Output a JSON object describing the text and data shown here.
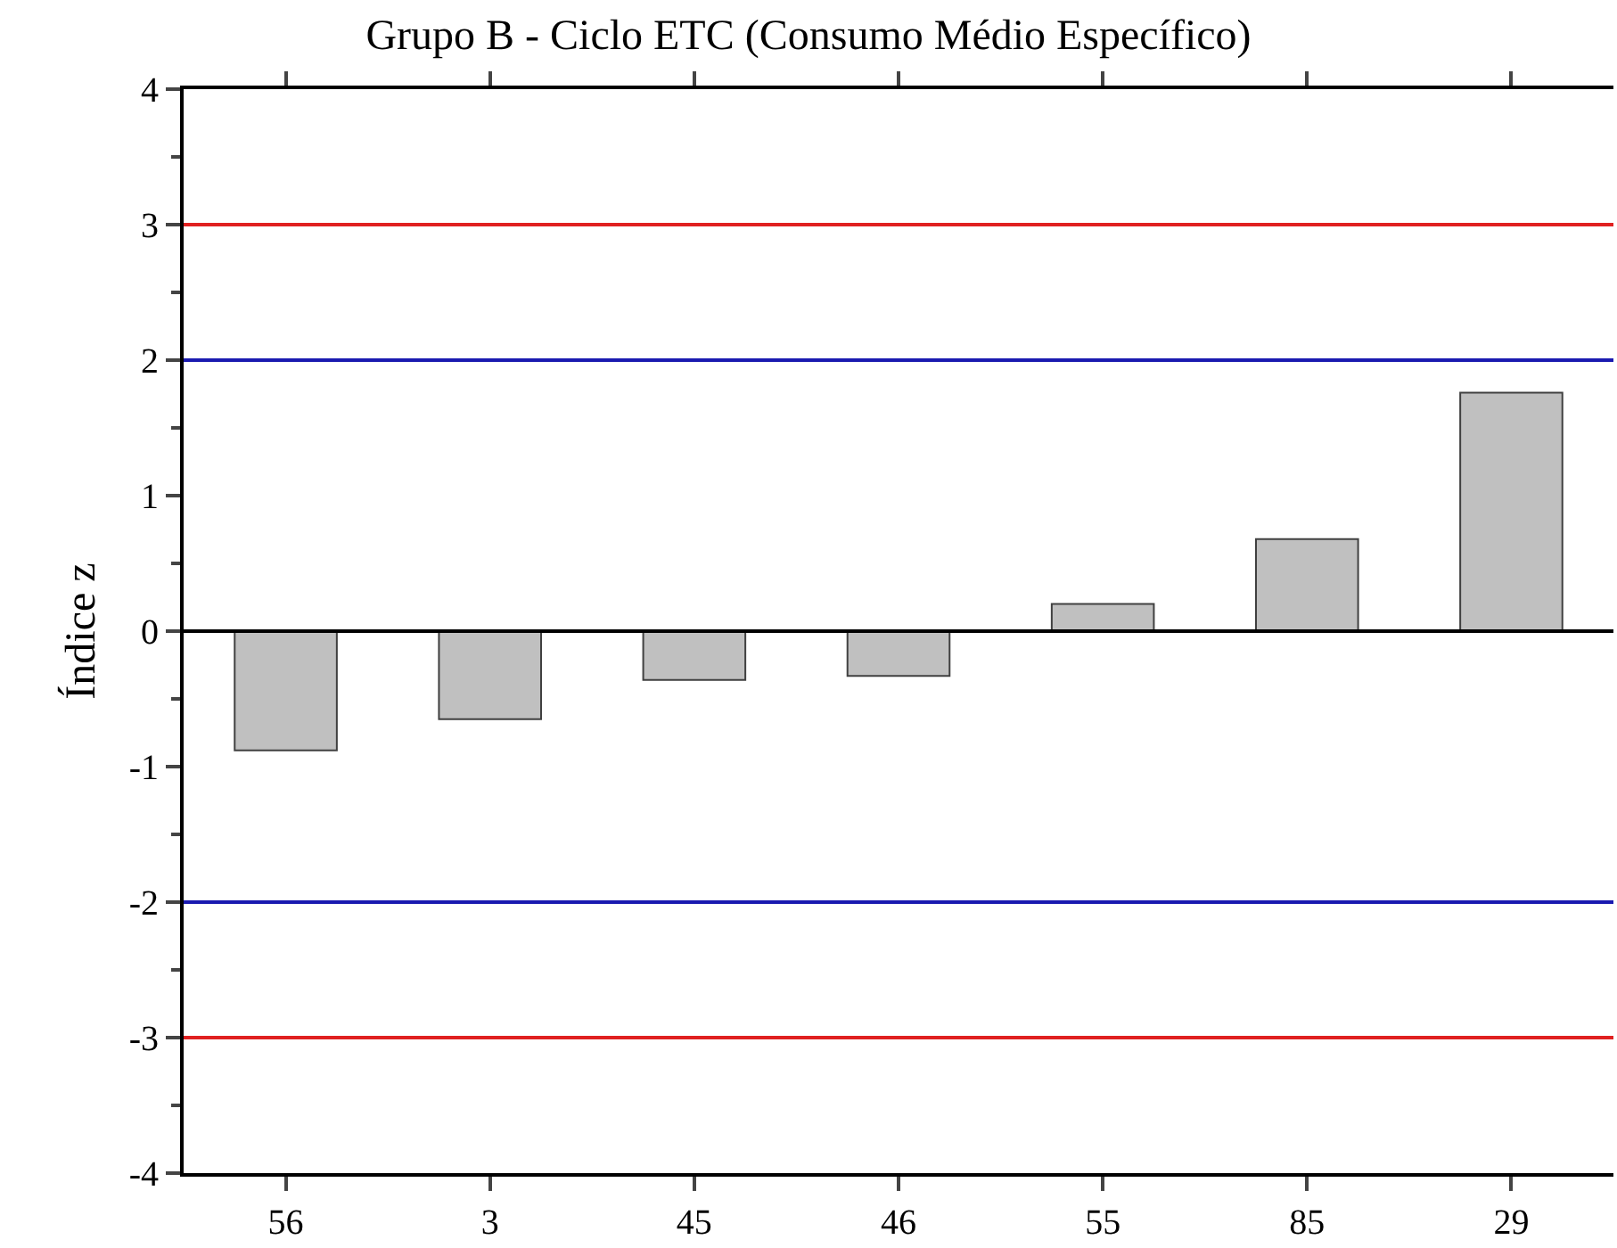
{
  "chart_data": {
    "type": "bar",
    "title": "Grupo B - Ciclo ETC (Consumo Médio Específico)",
    "ylabel": "Índice z",
    "categories": [
      "56",
      "3",
      "45",
      "46",
      "55",
      "85",
      "29"
    ],
    "values": [
      -0.88,
      -0.65,
      -0.36,
      -0.33,
      0.2,
      0.68,
      1.76
    ],
    "color": "#c0c0c0",
    "ylim": [
      -4,
      4
    ],
    "yticks": [
      -4,
      -3,
      -2,
      -1,
      0,
      1,
      2,
      3,
      4
    ],
    "ref_lines": [
      {
        "axis": "y",
        "value": 3,
        "color": "#e02020"
      },
      {
        "axis": "y",
        "value": 2,
        "color": "#1a1ab0"
      },
      {
        "axis": "y",
        "value": 0,
        "color": "#000000"
      },
      {
        "axis": "y",
        "value": -2,
        "color": "#1a1ab0"
      },
      {
        "axis": "y",
        "value": -3,
        "color": "#e02020"
      }
    ]
  }
}
